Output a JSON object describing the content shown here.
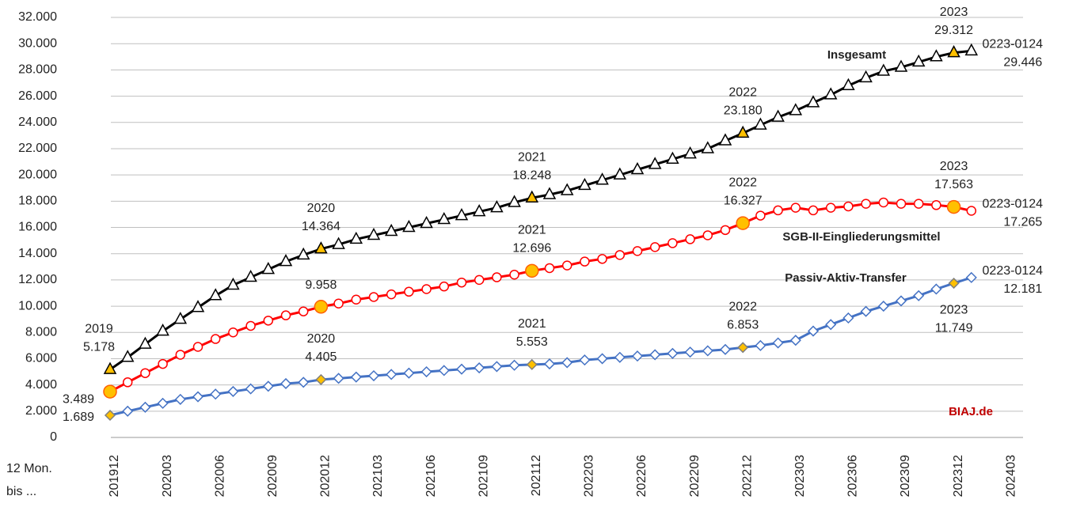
{
  "chart_data": {
    "type": "line",
    "x_label": [
      "12 Mon.",
      "bis ..."
    ],
    "source": "BIAJ.de",
    "source_color": "#c00000",
    "highlight_color": "#ffc000",
    "grid": true,
    "ylim": [
      0,
      32000
    ],
    "yticks": [
      0,
      {
        "value": 2000,
        "label": "2.000"
      },
      {
        "value": 4000,
        "label": "4.000"
      },
      {
        "value": 6000,
        "label": "6.000"
      },
      {
        "value": 8000,
        "label": "8.000"
      },
      {
        "value": 10000,
        "label": "10.000"
      },
      {
        "value": 12000,
        "label": "12.000"
      },
      {
        "value": 14000,
        "label": "14.000"
      },
      {
        "value": 16000,
        "label": "16.000"
      },
      {
        "value": 18000,
        "label": "18.000"
      },
      {
        "value": 20000,
        "label": "20.000"
      },
      {
        "value": 22000,
        "label": "22.000"
      },
      {
        "value": 24000,
        "label": "24.000"
      },
      {
        "value": 26000,
        "label": "26.000"
      },
      {
        "value": 28000,
        "label": "28.000"
      },
      {
        "value": 30000,
        "label": "30.000"
      },
      {
        "value": 32000,
        "label": "32.000"
      }
    ],
    "categories": [
      "201912",
      null,
      null,
      "202003",
      null,
      null,
      "202006",
      null,
      null,
      "202009",
      null,
      null,
      "202012",
      null,
      null,
      "202103",
      null,
      null,
      "202106",
      null,
      null,
      "202109",
      null,
      null,
      "202112",
      null,
      null,
      "202203",
      null,
      null,
      "202206",
      null,
      null,
      "202209",
      null,
      null,
      "202212",
      null,
      null,
      "202303",
      null,
      null,
      "202306",
      null,
      null,
      "202309",
      null,
      null,
      "202312",
      null,
      null,
      "202403"
    ],
    "series": [
      {
        "name": "Insgesamt",
        "color": "#000000",
        "marker": "triangle",
        "values": [
          5178,
          6100,
          7100,
          8100,
          9000,
          9900,
          10800,
          11600,
          12200,
          12800,
          13400,
          13900,
          14364,
          14700,
          15100,
          15400,
          15700,
          16000,
          16300,
          16600,
          16900,
          17200,
          17500,
          17900,
          18248,
          18500,
          18800,
          19200,
          19600,
          20000,
          20400,
          20800,
          21200,
          21600,
          22000,
          22600,
          23180,
          23800,
          24400,
          24900,
          25500,
          26100,
          26800,
          27400,
          27900,
          28200,
          28600,
          29000,
          29312,
          29446,
          null,
          null
        ],
        "value_labels": [
          "5.178",
          null,
          null,
          null,
          null,
          null,
          null,
          null,
          null,
          null,
          null,
          null,
          "14.364",
          null,
          null,
          null,
          null,
          null,
          null,
          null,
          null,
          null,
          null,
          null,
          "18.248",
          null,
          null,
          null,
          null,
          null,
          null,
          null,
          null,
          null,
          null,
          null,
          "23.180",
          null,
          null,
          null,
          null,
          null,
          null,
          null,
          null,
          null,
          null,
          null,
          "29.312",
          "29.446",
          null,
          null
        ],
        "period_labels": [
          "2019",
          null,
          null,
          null,
          null,
          null,
          null,
          null,
          null,
          null,
          null,
          null,
          "2020",
          null,
          null,
          null,
          null,
          null,
          null,
          null,
          null,
          null,
          null,
          null,
          "2021",
          null,
          null,
          null,
          null,
          null,
          null,
          null,
          null,
          null,
          null,
          null,
          "2022",
          null,
          null,
          null,
          null,
          null,
          null,
          null,
          null,
          null,
          null,
          null,
          "2023",
          "0223-0124",
          null,
          null
        ]
      },
      {
        "name": "SGB-II-Eingliederungsmittel",
        "color": "#ff0000",
        "marker": "circle",
        "values": [
          3489,
          4200,
          4900,
          5600,
          6300,
          6900,
          7500,
          8000,
          8500,
          8900,
          9300,
          9600,
          9958,
          10200,
          10500,
          10700,
          10900,
          11100,
          11300,
          11500,
          11800,
          12000,
          12200,
          12400,
          12696,
          12900,
          13100,
          13400,
          13600,
          13900,
          14200,
          14500,
          14800,
          15100,
          15400,
          15800,
          16327,
          16900,
          17300,
          17500,
          17300,
          17500,
          17600,
          17800,
          17900,
          17800,
          17800,
          17700,
          17563,
          17265,
          null,
          null
        ],
        "value_labels": [
          "3.489",
          null,
          null,
          null,
          null,
          null,
          null,
          null,
          null,
          null,
          null,
          null,
          "9.958",
          null,
          null,
          null,
          null,
          null,
          null,
          null,
          null,
          null,
          null,
          null,
          "12.696",
          null,
          null,
          null,
          null,
          null,
          null,
          null,
          null,
          null,
          null,
          null,
          "16.327",
          null,
          null,
          null,
          null,
          null,
          null,
          null,
          null,
          null,
          null,
          null,
          "17.563",
          "17.265",
          null,
          null
        ],
        "period_labels": [
          null,
          null,
          null,
          null,
          null,
          null,
          null,
          null,
          null,
          null,
          null,
          null,
          null,
          null,
          null,
          null,
          null,
          null,
          null,
          null,
          null,
          null,
          null,
          null,
          "2021",
          null,
          null,
          null,
          null,
          null,
          null,
          null,
          null,
          null,
          null,
          null,
          "2022",
          null,
          null,
          null,
          null,
          null,
          null,
          null,
          null,
          null,
          null,
          null,
          "2023",
          "0223-0124",
          null,
          null
        ]
      },
      {
        "name": "Passiv-Aktiv-Transfer",
        "color": "#4472c4",
        "marker": "diamond",
        "values": [
          1689,
          2000,
          2300,
          2600,
          2900,
          3100,
          3300,
          3500,
          3700,
          3900,
          4100,
          4200,
          4405,
          4500,
          4600,
          4700,
          4800,
          4900,
          5000,
          5100,
          5200,
          5300,
          5400,
          5500,
          5553,
          5600,
          5700,
          5900,
          6000,
          6100,
          6200,
          6300,
          6400,
          6500,
          6600,
          6700,
          6853,
          7000,
          7200,
          7400,
          8100,
          8600,
          9100,
          9600,
          10000,
          10400,
          10800,
          11300,
          11749,
          12181,
          null,
          null
        ],
        "value_labels": [
          "1.689",
          null,
          null,
          null,
          null,
          null,
          null,
          null,
          null,
          null,
          null,
          null,
          "4.405",
          null,
          null,
          null,
          null,
          null,
          null,
          null,
          null,
          null,
          null,
          null,
          "5.553",
          null,
          null,
          null,
          null,
          null,
          null,
          null,
          null,
          null,
          null,
          null,
          "6.853",
          null,
          null,
          null,
          null,
          null,
          null,
          null,
          null,
          null,
          null,
          null,
          "11.749",
          "12.181",
          null,
          null
        ],
        "period_labels": [
          null,
          null,
          null,
          null,
          null,
          null,
          null,
          null,
          null,
          null,
          null,
          null,
          "2020",
          null,
          null,
          null,
          null,
          null,
          null,
          null,
          null,
          null,
          null,
          null,
          "2021",
          null,
          null,
          null,
          null,
          null,
          null,
          null,
          null,
          null,
          null,
          null,
          "2022",
          null,
          null,
          null,
          null,
          null,
          null,
          null,
          null,
          null,
          null,
          null,
          "2023",
          "0223-0124",
          null,
          null
        ]
      }
    ]
  }
}
